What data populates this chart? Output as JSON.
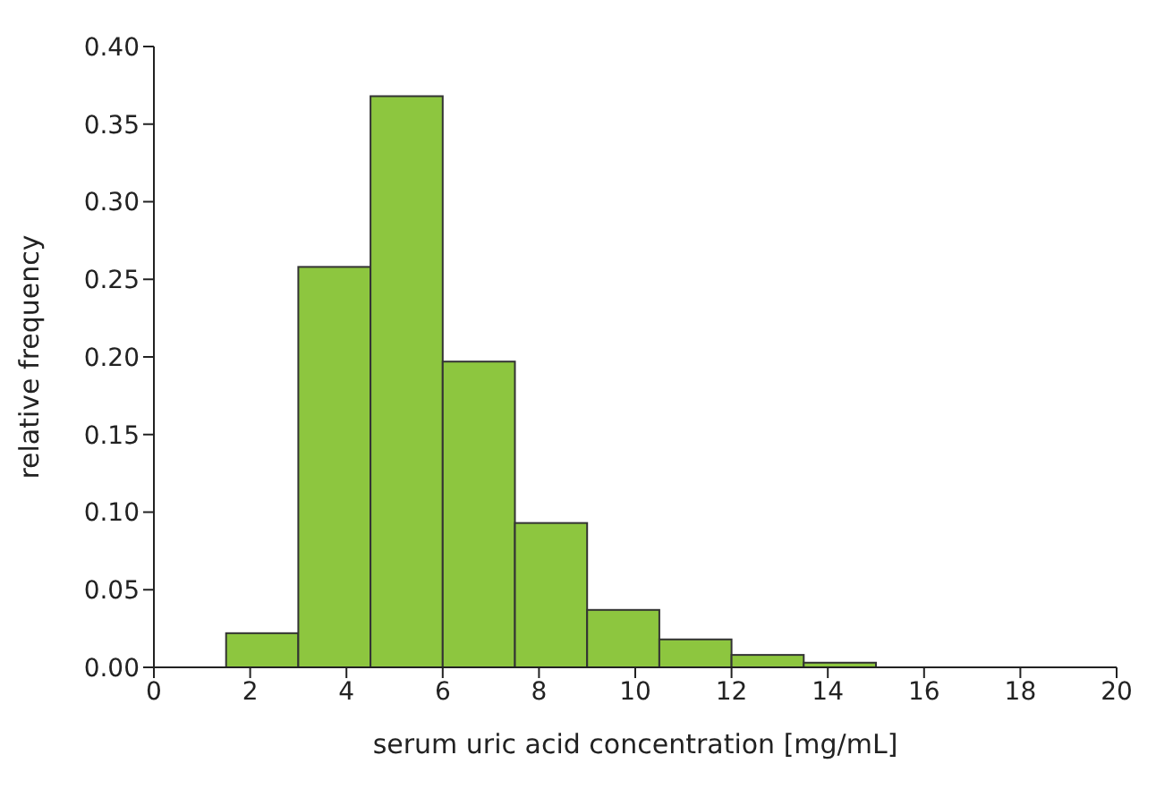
{
  "chart_data": {
    "type": "histogram",
    "xlabel": "serum uric acid concentration [mg/mL]",
    "ylabel": "relative frequency",
    "bins": [
      1.5,
      3.0,
      4.5,
      6.0,
      7.5,
      9.0,
      10.5,
      12.0,
      13.5,
      15.0
    ],
    "values": [
      0.022,
      0.258,
      0.368,
      0.197,
      0.093,
      0.037,
      0.018,
      0.008,
      0.003
    ],
    "color": "#8dc63f",
    "xlim": [
      0,
      20
    ],
    "xticks": [
      0,
      2,
      4,
      6,
      8,
      10,
      12,
      14,
      16,
      18,
      20
    ],
    "ylim": [
      0,
      0.4
    ],
    "yticks": [
      {
        "value": 0,
        "label": "0.00"
      },
      {
        "value": 0.05,
        "label": "0.05"
      },
      {
        "value": 0.1,
        "label": "0.10"
      },
      {
        "value": 0.15,
        "label": "0.15"
      },
      {
        "value": 0.2,
        "label": "0.20"
      },
      {
        "value": 0.25,
        "label": "0.25"
      },
      {
        "value": 0.3,
        "label": "0.30"
      },
      {
        "value": 0.35,
        "label": "0.35"
      },
      {
        "value": 0.4,
        "label": "0.40"
      }
    ],
    "grid": false
  }
}
